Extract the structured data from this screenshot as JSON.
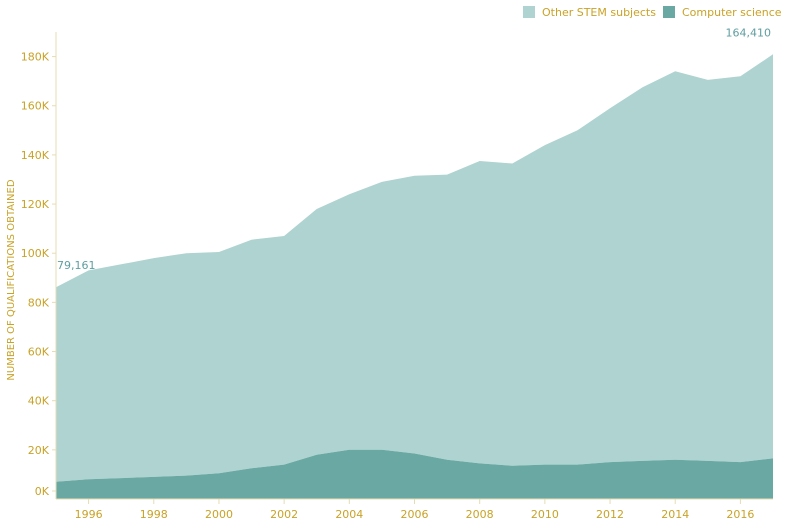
{
  "chart_data": {
    "type": "area",
    "stacked": true,
    "ylabel": "NUMBER OF QUALIFICATIONS OBTAINED",
    "x": [
      1995,
      1996,
      1997,
      1998,
      1999,
      2000,
      2001,
      2002,
      2003,
      2004,
      2005,
      2006,
      2007,
      2008,
      2009,
      2010,
      2011,
      2012,
      2013,
      2014,
      2015,
      2016,
      2017
    ],
    "xticks": [
      "1996",
      "1998",
      "2000",
      "2002",
      "2004",
      "2006",
      "2008",
      "2010",
      "2012",
      "2014",
      "2016"
    ],
    "xlim": [
      1995,
      2017
    ],
    "yticks": [
      "0K",
      "20K",
      "40K",
      "60K",
      "80K",
      "100K",
      "120K",
      "140K",
      "160K",
      "180K"
    ],
    "ylim": [
      0,
      190000
    ],
    "legend_position": "top-right",
    "series": [
      {
        "name": "Other STEM subjects",
        "color": "#aed3d0",
        "values": [
          79161,
          85000,
          87000,
          89000,
          90500,
          90000,
          93000,
          93000,
          100000,
          104000,
          109000,
          113000,
          116000,
          123000,
          123000,
          130000,
          136000,
          144000,
          152000,
          158000,
          155000,
          157000,
          164410
        ]
      },
      {
        "name": "Computer science",
        "color": "#6aa8a3",
        "values": [
          7000,
          8000,
          8500,
          9000,
          9500,
          10500,
          12500,
          14000,
          18000,
          20000,
          20000,
          18500,
          16000,
          14500,
          13500,
          14000,
          14000,
          15000,
          15500,
          16000,
          15500,
          15000,
          16500
        ]
      }
    ],
    "annotations": [
      {
        "text": "79,161",
        "x": 1995,
        "series": 0
      },
      {
        "text": "164,410",
        "x": 2017,
        "series": 0
      }
    ]
  }
}
